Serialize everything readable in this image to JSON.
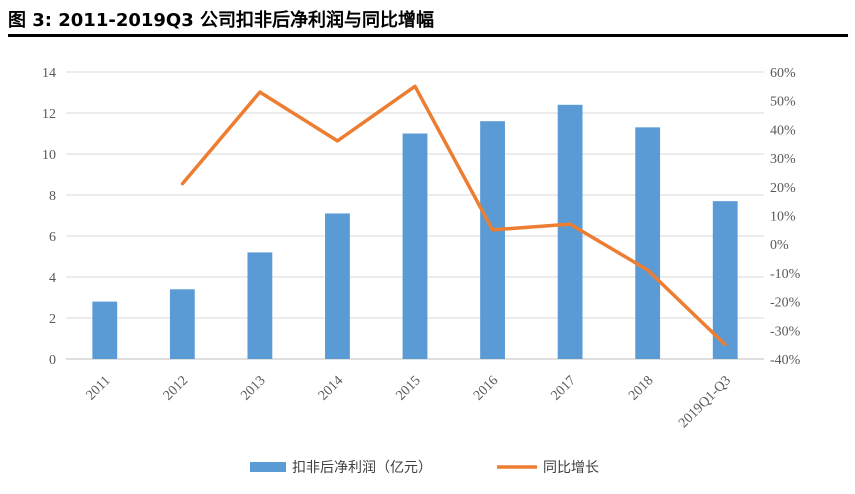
{
  "figure_title": "图 3:  2011-2019Q3 公司扣非后净利润与同比增幅",
  "chart_data": {
    "type": "bar",
    "categories": [
      "2011",
      "2012",
      "2013",
      "2014",
      "2015",
      "2016",
      "2017",
      "2018",
      "2019Q1-Q3"
    ],
    "series": [
      {
        "name": "扣非后净利润（亿元）",
        "type": "bar",
        "axis": "left",
        "color": "#5B9BD5",
        "values": [
          2.8,
          3.4,
          5.2,
          7.1,
          11.0,
          11.6,
          12.4,
          11.3,
          7.7
        ]
      },
      {
        "name": "同比增长",
        "type": "line",
        "axis": "right",
        "color": "#ED7D31",
        "values": [
          null,
          0.21,
          0.53,
          0.36,
          0.55,
          0.05,
          0.07,
          -0.09,
          -0.35
        ]
      }
    ],
    "y_left": {
      "min": 0,
      "max": 14,
      "step": 2,
      "ticks": [
        "0",
        "2",
        "4",
        "6",
        "8",
        "10",
        "12",
        "14"
      ]
    },
    "y_right": {
      "min": -0.4,
      "max": 0.6,
      "step": 0.1,
      "ticks": [
        "-40%",
        "-30%",
        "-20%",
        "-10%",
        "0%",
        "10%",
        "20%",
        "30%",
        "40%",
        "50%",
        "60%"
      ]
    },
    "grid": true,
    "legend_position": "bottom"
  }
}
